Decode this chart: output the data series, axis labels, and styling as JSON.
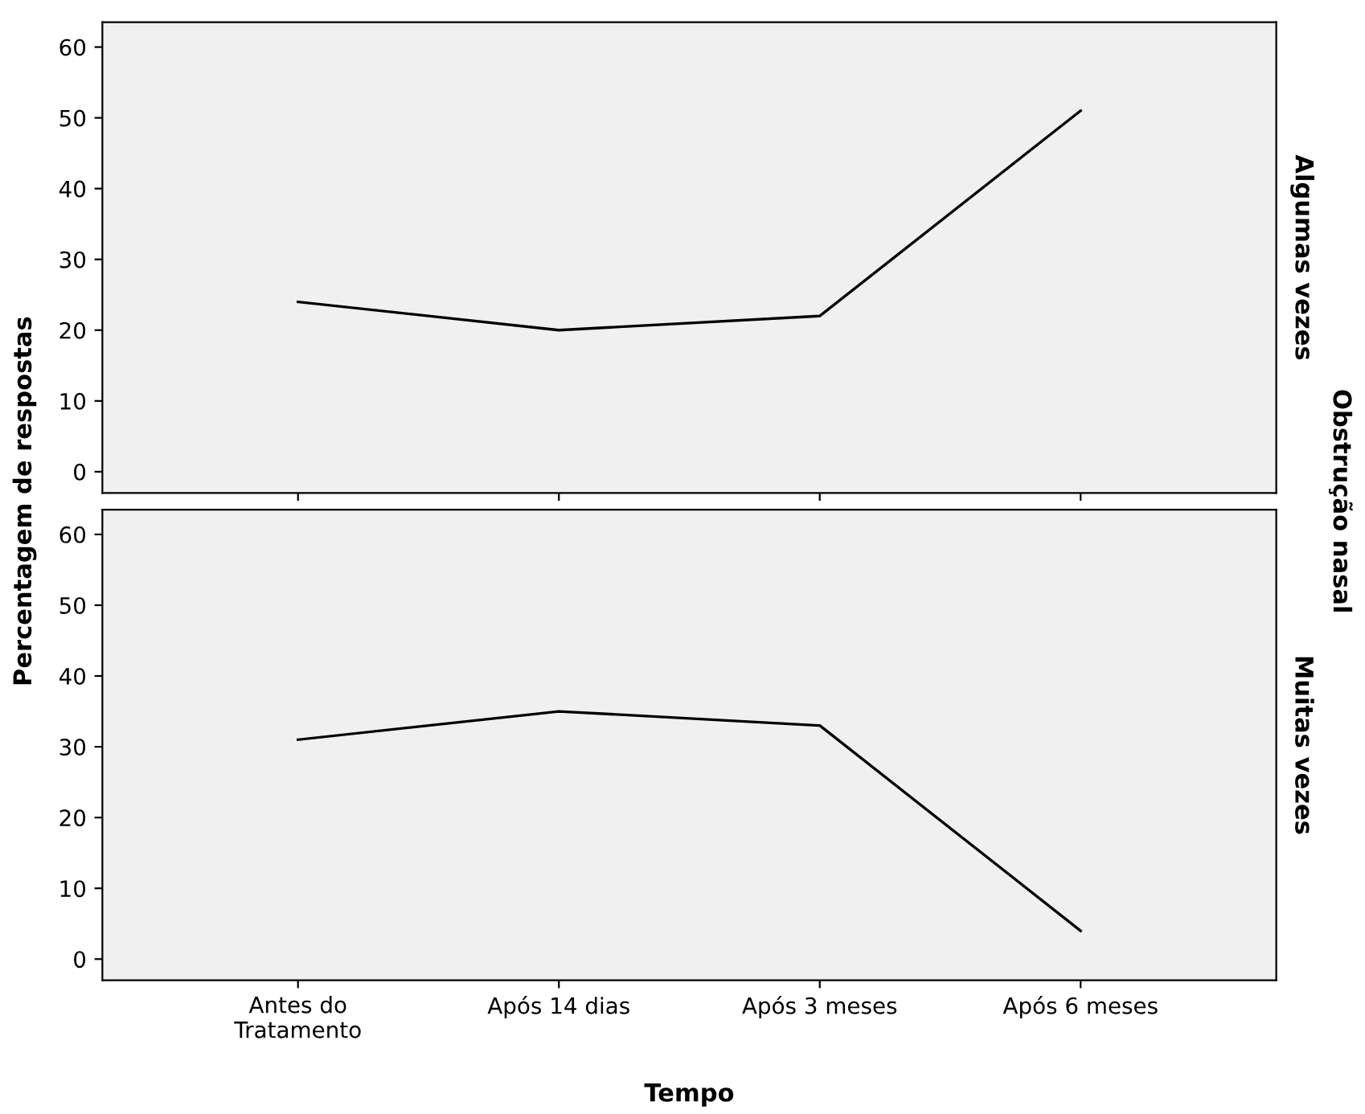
{
  "chart_data": [
    {
      "type": "line",
      "categories": [
        null,
        null,
        null,
        null
      ],
      "series": [
        {
          "color": "#000000",
          "values": [
            24,
            20,
            22,
            51
          ]
        }
      ],
      "ylim": [
        -3,
        63.5
      ],
      "yticks": [
        0,
        10,
        20,
        30,
        40,
        50,
        60
      ],
      "ylabel": "Percentagem de respostas",
      "y2label": "Algumas vezes",
      "annotations": [
        "Obstrução nasal"
      ],
      "tick_labels": "y",
      "grid": false,
      "legend": false,
      "marker": "none",
      "line_style": "solid"
    },
    {
      "type": "line",
      "categories": [
        "Antes do\nTratamento",
        "Após 14 dias",
        "Após 3 meses",
        "Após 6 meses"
      ],
      "series": [
        {
          "color": "#000000",
          "values": [
            31,
            35,
            33,
            4
          ]
        }
      ],
      "ylim": [
        -3,
        63.5
      ],
      "yticks": [
        0,
        10,
        20,
        30,
        40,
        50,
        60
      ],
      "xlabel": "Tempo",
      "y2label": "Muitas vezes",
      "grid": false,
      "legend": false,
      "marker": "none",
      "line_style": "solid"
    }
  ]
}
